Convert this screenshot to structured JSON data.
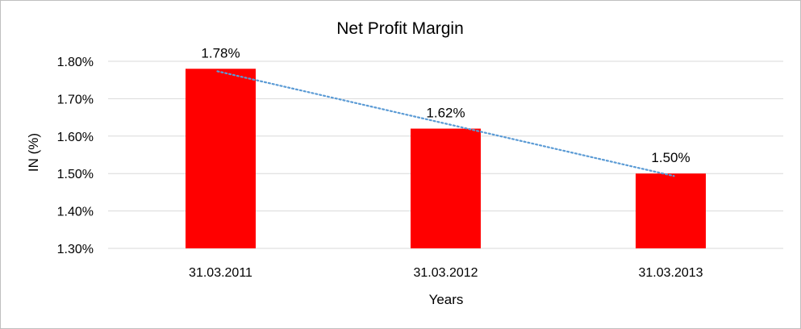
{
  "chart_data": {
    "type": "bar",
    "title": "Net Profit Margin",
    "xlabel": "Years",
    "ylabel": "IN (%)",
    "categories": [
      "31.03.2011",
      "31.03.2012",
      "31.03.2013"
    ],
    "values": [
      1.78,
      1.62,
      1.5
    ],
    "value_labels": [
      "1.78%",
      "1.62%",
      "1.50%"
    ],
    "ylim": [
      1.3,
      1.8
    ],
    "yticks": [
      1.3,
      1.4,
      1.5,
      1.6,
      1.7,
      1.8
    ],
    "ytick_labels": [
      "1.30%",
      "1.40%",
      "1.50%",
      "1.60%",
      "1.70%",
      "1.80%"
    ],
    "bar_color": "#ff0000",
    "trendline": {
      "type": "linear",
      "style": "dotted",
      "color": "#5b9bd5"
    },
    "grid": true,
    "legend": "none"
  }
}
